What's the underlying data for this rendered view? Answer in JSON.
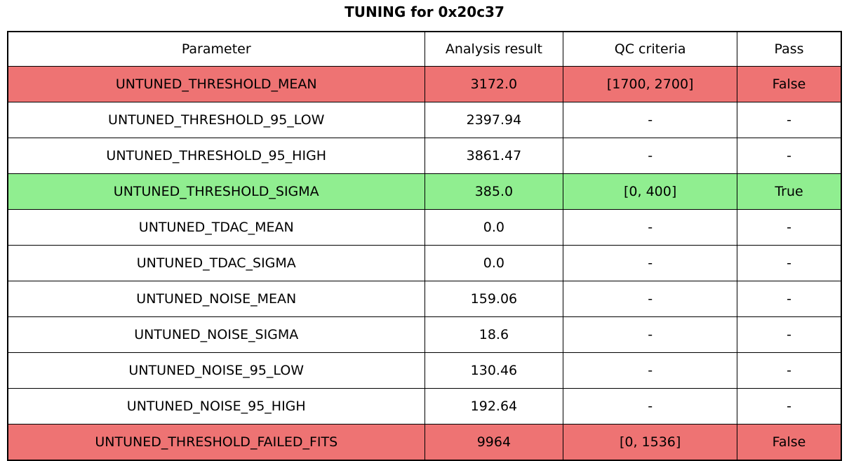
{
  "title": "TUNING for 0x20c37",
  "colors": {
    "fail": "#ee7373",
    "pass": "#90ee90",
    "neutral": "#ffffff",
    "border": "#000000",
    "background": "#ffffff",
    "text": "#000000"
  },
  "chart_data": {
    "type": "table",
    "title": "TUNING for 0x20c37",
    "columns": [
      "Parameter",
      "Analysis result",
      "QC criteria",
      "Pass"
    ],
    "rows": [
      [
        "UNTUNED_THRESHOLD_MEAN",
        "3172.0",
        "[1700, 2700]",
        "False"
      ],
      [
        "UNTUNED_THRESHOLD_95_LOW",
        "2397.94",
        "-",
        "-"
      ],
      [
        "UNTUNED_THRESHOLD_95_HIGH",
        "3861.47",
        "-",
        "-"
      ],
      [
        "UNTUNED_THRESHOLD_SIGMA",
        "385.0",
        "[0, 400]",
        "True"
      ],
      [
        "UNTUNED_TDAC_MEAN",
        "0.0",
        "-",
        "-"
      ],
      [
        "UNTUNED_TDAC_SIGMA",
        "0.0",
        "-",
        "-"
      ],
      [
        "UNTUNED_NOISE_MEAN",
        "159.06",
        "-",
        "-"
      ],
      [
        "UNTUNED_NOISE_SIGMA",
        "18.6",
        "-",
        "-"
      ],
      [
        "UNTUNED_NOISE_95_LOW",
        "130.46",
        "-",
        "-"
      ],
      [
        "UNTUNED_NOISE_95_HIGH",
        "192.64",
        "-",
        "-"
      ],
      [
        "UNTUNED_THRESHOLD_FAILED_FITS",
        "9964",
        "[0, 1536]",
        "False"
      ]
    ],
    "row_status": [
      "fail",
      "neutral",
      "neutral",
      "pass",
      "neutral",
      "neutral",
      "neutral",
      "neutral",
      "neutral",
      "neutral",
      "fail"
    ],
    "column_widths_pct": [
      50.0,
      16.65,
      20.85,
      12.5
    ],
    "layout": {
      "grid": true,
      "header_background": "#ffffff"
    }
  }
}
